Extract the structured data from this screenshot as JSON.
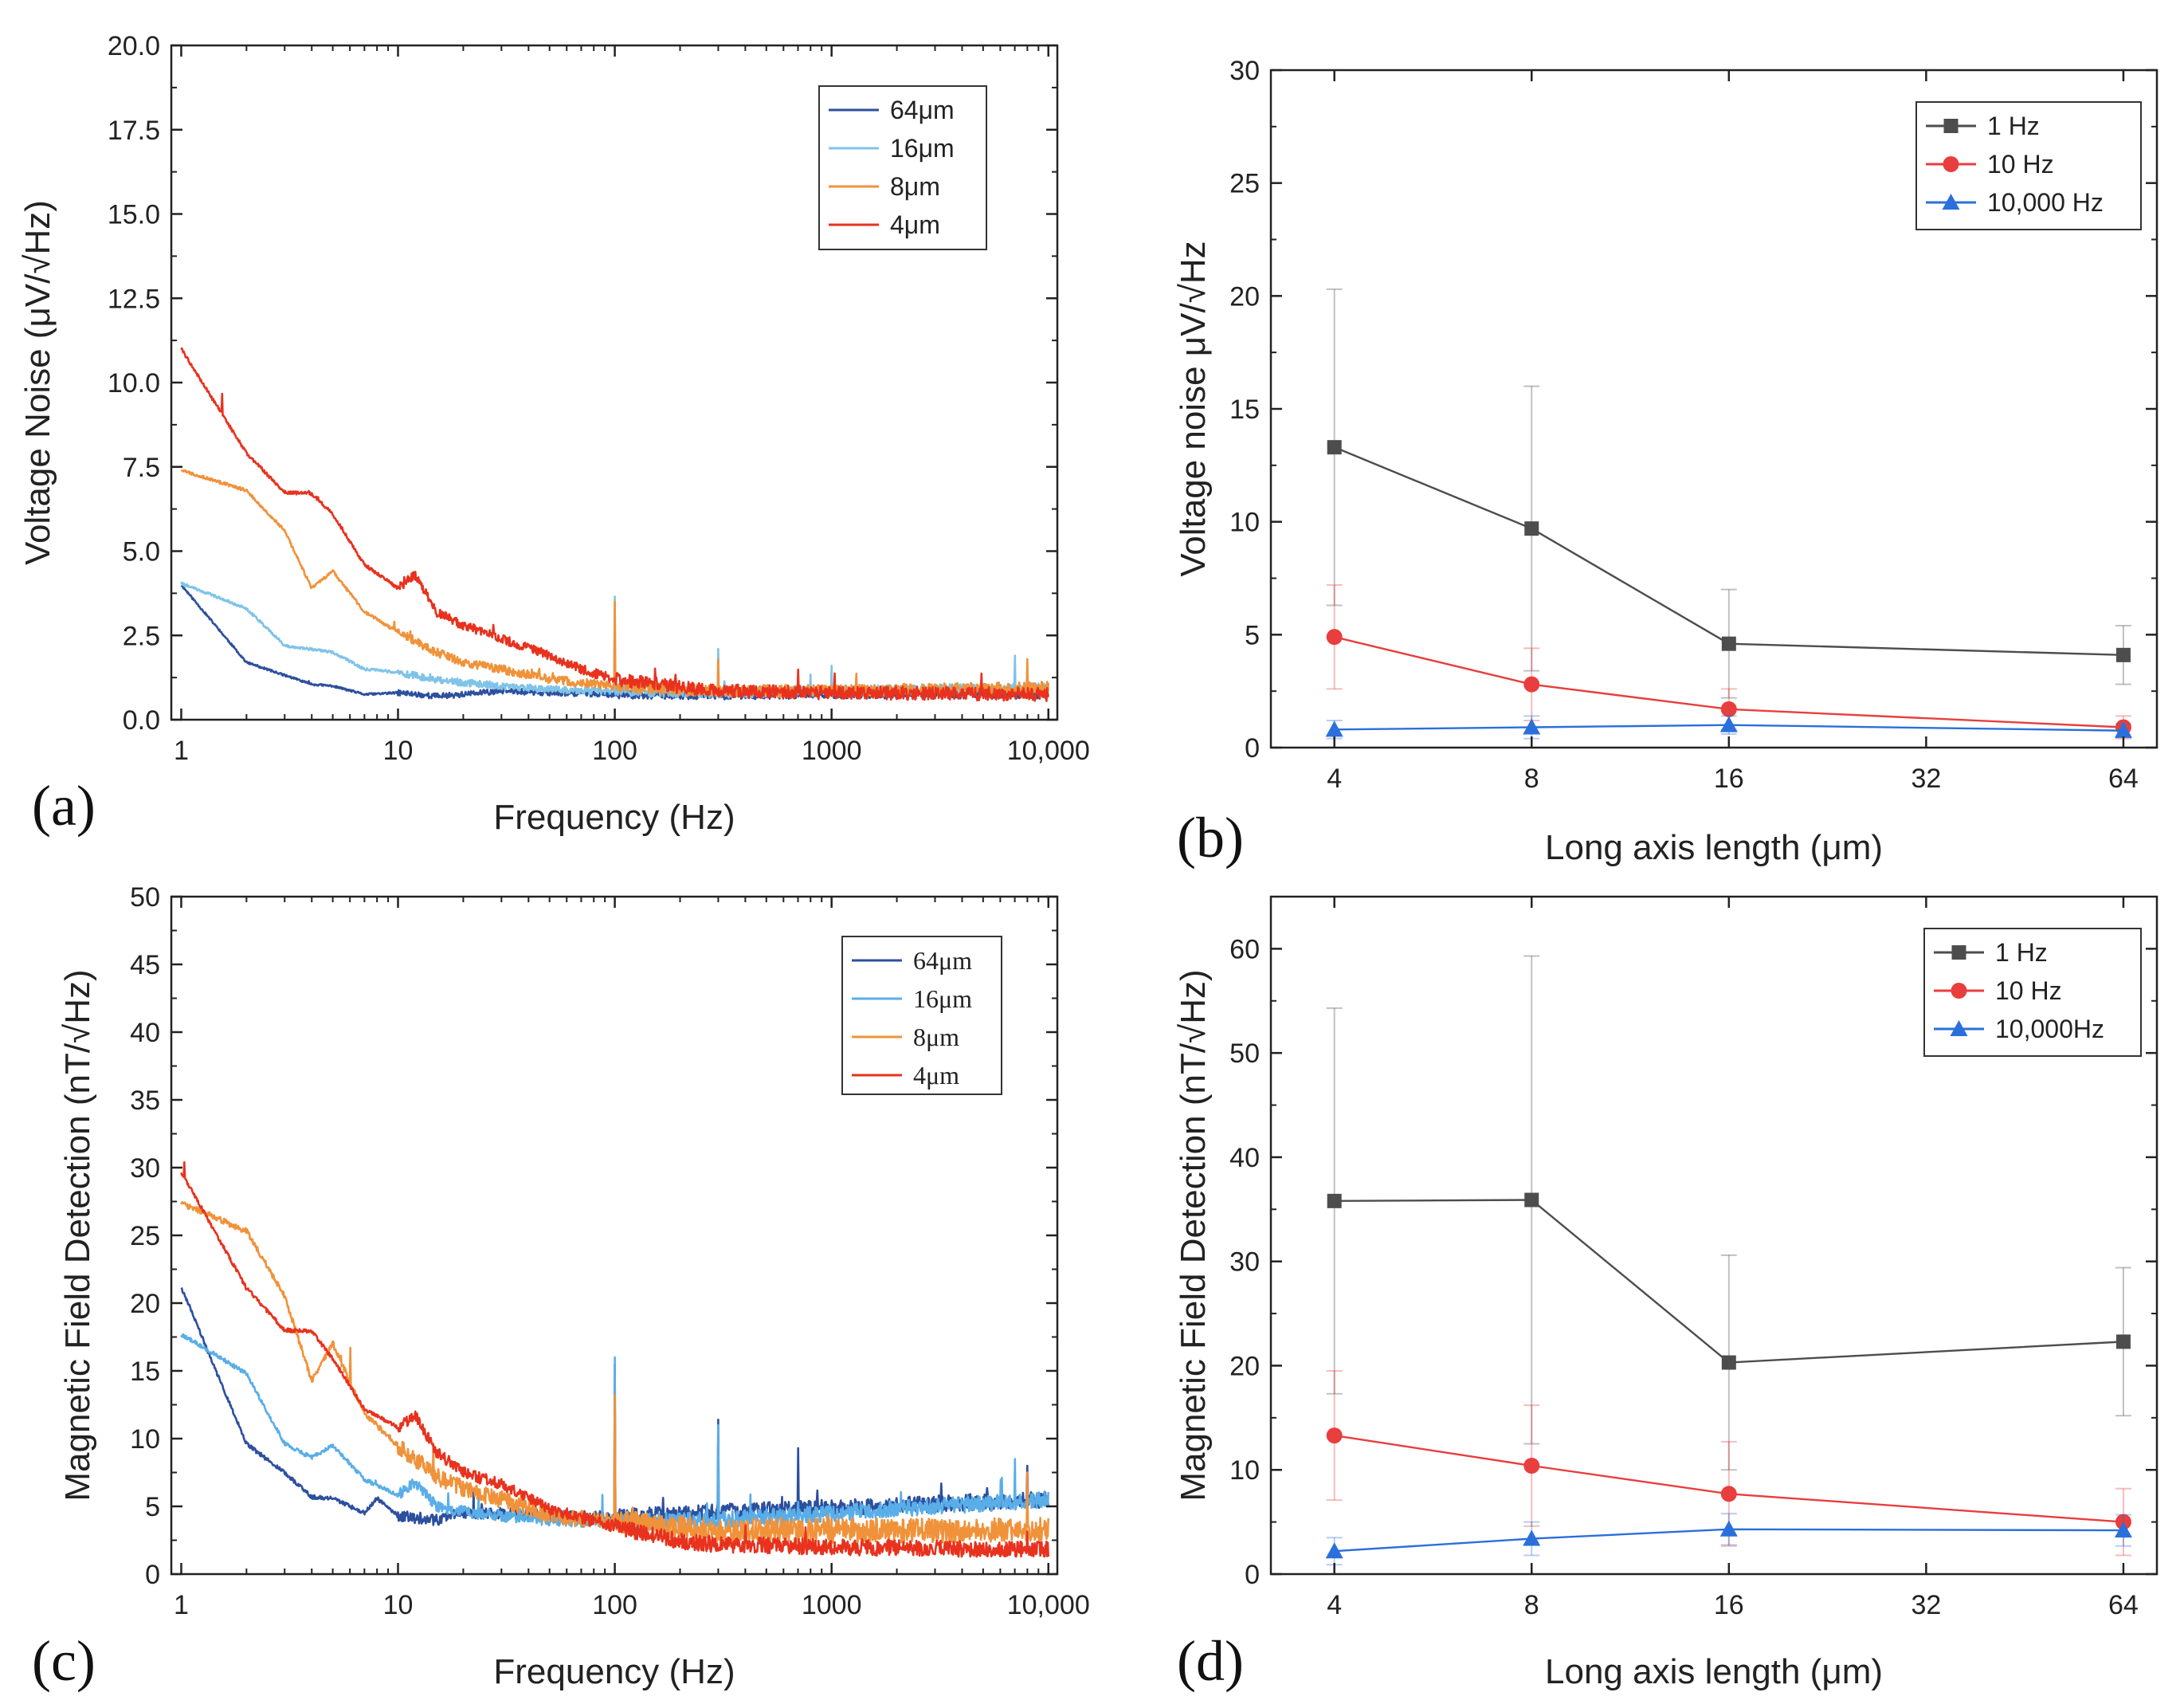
{
  "figure": {
    "description_title": ""
  },
  "chart_data": [
    {
      "type": "line",
      "panel_label": "(a)",
      "title": "",
      "xlabel": "Frequency (Hz)",
      "ylabel": "Voltage Noise (μV/√Hz)",
      "xscale": "log",
      "xlim": [
        0.9,
        11000
      ],
      "ylim": [
        0,
        20
      ],
      "xticks": [
        1,
        10,
        100,
        1000,
        10000
      ],
      "xtick_labels": [
        "1",
        "10",
        "100",
        "1000",
        "10,000"
      ],
      "yticks": [
        0,
        2.5,
        5,
        7.5,
        10,
        12.5,
        15,
        17.5,
        20
      ],
      "ytick_labels": [
        "0.0",
        "2.5",
        "5.0",
        "7.5",
        "10.0",
        "12.5",
        "15.0",
        "17.5",
        "20.0"
      ],
      "legend_position": "top-right",
      "series": [
        {
          "name": "64μm",
          "color": "#2c4f9e",
          "seed": 11,
          "points": [
            [
              1,
              4.0
            ],
            [
              2,
              1.7
            ],
            [
              4,
              1.05
            ],
            [
              5,
              1.0
            ],
            [
              7,
              0.75
            ],
            [
              10,
              0.8
            ],
            [
              15,
              0.7
            ],
            [
              20,
              0.75
            ],
            [
              30,
              0.85
            ],
            [
              50,
              0.8
            ],
            [
              100,
              0.75
            ],
            [
              300,
              0.72
            ],
            [
              1000,
              0.75
            ],
            [
              3000,
              0.75
            ],
            [
              10000,
              0.75
            ]
          ],
          "noise": 0.12,
          "spikes": [
            [
              100,
              1.5
            ],
            [
              300,
              1.4
            ]
          ]
        },
        {
          "name": "16μm",
          "color": "#7fc3e8",
          "seed": 22,
          "points": [
            [
              1,
              4.05
            ],
            [
              2,
              3.3
            ],
            [
              3,
              2.2
            ],
            [
              5,
              2.0
            ],
            [
              7,
              1.5
            ],
            [
              10,
              1.4
            ],
            [
              15,
              1.2
            ],
            [
              20,
              1.1
            ],
            [
              30,
              1.0
            ],
            [
              50,
              0.9
            ],
            [
              100,
              0.85
            ],
            [
              300,
              0.8
            ],
            [
              1000,
              0.85
            ],
            [
              3000,
              0.9
            ],
            [
              10000,
              0.95
            ]
          ],
          "noise": 0.15,
          "spikes": [
            [
              100,
              3.65
            ],
            [
              300,
              2.1
            ],
            [
              1000,
              1.6
            ],
            [
              7000,
              1.9
            ]
          ]
        },
        {
          "name": "8μm",
          "color": "#f0923a",
          "seed": 33,
          "points": [
            [
              1,
              7.4
            ],
            [
              2,
              6.8
            ],
            [
              3,
              5.6
            ],
            [
              4,
              3.9
            ],
            [
              5,
              4.4
            ],
            [
              7,
              3.2
            ],
            [
              10,
              2.6
            ],
            [
              15,
              2.0
            ],
            [
              20,
              1.7
            ],
            [
              30,
              1.5
            ],
            [
              50,
              1.2
            ],
            [
              100,
              1.0
            ],
            [
              300,
              0.85
            ],
            [
              1000,
              0.85
            ],
            [
              3000,
              0.9
            ],
            [
              10000,
              0.95
            ]
          ],
          "noise": 0.18,
          "spikes": [
            [
              100,
              3.5
            ],
            [
              300,
              1.8
            ],
            [
              8000,
              1.8
            ]
          ]
        },
        {
          "name": "4μm",
          "color": "#e8321e",
          "seed": 44,
          "points": [
            [
              1,
              11.0
            ],
            [
              2,
              7.9
            ],
            [
              3,
              6.75
            ],
            [
              4,
              6.7
            ],
            [
              5,
              6.1
            ],
            [
              7,
              4.6
            ],
            [
              10,
              3.9
            ],
            [
              12,
              4.3
            ],
            [
              15,
              3.2
            ],
            [
              20,
              2.8
            ],
            [
              30,
              2.4
            ],
            [
              50,
              1.9
            ],
            [
              70,
              1.5
            ],
            [
              100,
              1.2
            ],
            [
              300,
              0.85
            ],
            [
              1000,
              0.8
            ],
            [
              3000,
              0.78
            ],
            [
              10000,
              0.75
            ]
          ],
          "noise": 0.2,
          "spikes": []
        }
      ]
    },
    {
      "type": "line",
      "panel_label": "(b)",
      "title": "",
      "xlabel": "Long axis length (μm)",
      "ylabel": "Voltage noise μV/√Hz",
      "xscale": "log2",
      "xlim": [
        3.2,
        72
      ],
      "ylim": [
        0,
        30
      ],
      "xticks": [
        4,
        8,
        16,
        32,
        64
      ],
      "xtick_labels": [
        "4",
        "8",
        "16",
        "32",
        "64"
      ],
      "yticks": [
        0,
        5,
        10,
        15,
        20,
        25,
        30
      ],
      "ytick_labels": [
        "0",
        "5",
        "10",
        "15",
        "20",
        "25",
        "30"
      ],
      "legend_position": "top-right",
      "series": [
        {
          "name": "1  Hz",
          "color": "#4d4d4d",
          "marker": "square",
          "x": [
            4,
            8,
            16,
            64
          ],
          "y": [
            13.3,
            9.7,
            4.6,
            4.1
          ],
          "yerr": [
            7.0,
            6.3,
            2.4,
            1.3
          ]
        },
        {
          "name": "10 Hz",
          "color": "#e83e3e",
          "marker": "circle",
          "x": [
            4,
            8,
            16,
            64
          ],
          "y": [
            4.9,
            2.8,
            1.7,
            0.9
          ],
          "yerr": [
            2.3,
            1.6,
            0.9,
            0.5
          ]
        },
        {
          "name": "10,000 Hz",
          "color": "#2a6fdb",
          "marker": "triangle",
          "x": [
            4,
            8,
            16,
            64
          ],
          "y": [
            0.8,
            0.9,
            1.0,
            0.75
          ],
          "yerr": [
            0.4,
            0.5,
            0.4,
            0.3
          ]
        }
      ]
    },
    {
      "type": "line",
      "panel_label": "(c)",
      "title": "",
      "xlabel": "Frequency (Hz)",
      "ylabel": "Magnetic Field Detection (nT/√Hz)",
      "xscale": "log",
      "xlim": [
        0.9,
        11000
      ],
      "ylim": [
        0,
        50
      ],
      "xticks": [
        1,
        10,
        100,
        1000,
        10000
      ],
      "xtick_labels": [
        "1",
        "10",
        "100",
        "1000",
        "10,000"
      ],
      "yticks": [
        0,
        5,
        10,
        15,
        20,
        25,
        30,
        35,
        40,
        45,
        50
      ],
      "ytick_labels": [
        "0",
        "5",
        "10",
        "15",
        "20",
        "25",
        "30",
        "35",
        "40",
        "45",
        "50"
      ],
      "legend_position": "top-right",
      "series": [
        {
          "name": "64μm",
          "color": "#2c4f9e",
          "seed": 55,
          "points": [
            [
              1,
              21.2
            ],
            [
              2,
              9.6
            ],
            [
              3,
              7.5
            ],
            [
              4,
              5.7
            ],
            [
              5,
              5.6
            ],
            [
              7,
              4.5
            ],
            [
              8,
              5.6
            ],
            [
              10,
              4.3
            ],
            [
              15,
              4.0
            ],
            [
              20,
              4.5
            ],
            [
              30,
              4.5
            ],
            [
              50,
              4.3
            ],
            [
              100,
              4.2
            ],
            [
              300,
              4.6
            ],
            [
              1000,
              4.9
            ],
            [
              3000,
              5.2
            ],
            [
              10000,
              5.5
            ]
          ],
          "noise": 0.6,
          "spikes": [
            [
              100,
              15.5
            ],
            [
              300,
              11.4
            ],
            [
              700,
              9.3
            ],
            [
              8000,
              8.0
            ]
          ]
        },
        {
          "name": "16μm",
          "color": "#5aaee8",
          "seed": 66,
          "points": [
            [
              1,
              17.7
            ],
            [
              2,
              14.8
            ],
            [
              3,
              9.6
            ],
            [
              4,
              8.6
            ],
            [
              5,
              9.5
            ],
            [
              7,
              7.0
            ],
            [
              10,
              5.8
            ],
            [
              12,
              6.8
            ],
            [
              15,
              5.0
            ],
            [
              20,
              4.6
            ],
            [
              30,
              4.3
            ],
            [
              50,
              4.0
            ],
            [
              100,
              3.8
            ],
            [
              300,
              4.0
            ],
            [
              1000,
              4.5
            ],
            [
              3000,
              5.0
            ],
            [
              10000,
              5.5
            ]
          ],
          "noise": 0.6,
          "spikes": [
            [
              100,
              16.0
            ],
            [
              300,
              11.0
            ],
            [
              7000,
              8.5
            ]
          ]
        },
        {
          "name": "8μm",
          "color": "#f0923a",
          "seed": 77,
          "points": [
            [
              1,
              27.4
            ],
            [
              2,
              25.3
            ],
            [
              3,
              20.5
            ],
            [
              4,
              14.3
            ],
            [
              5,
              17.0
            ],
            [
              7,
              11.8
            ],
            [
              10,
              9.5
            ],
            [
              15,
              7.2
            ],
            [
              20,
              6.3
            ],
            [
              30,
              5.5
            ],
            [
              50,
              4.4
            ],
            [
              100,
              3.8
            ],
            [
              300,
              3.2
            ],
            [
              1000,
              3.2
            ],
            [
              3000,
              3.2
            ],
            [
              10000,
              3.3
            ]
          ],
          "noise": 0.9,
          "spikes": [
            [
              100,
              13.2
            ],
            [
              8000,
              7.5
            ]
          ]
        },
        {
          "name": "4μm",
          "color": "#e8321e",
          "seed": 88,
          "points": [
            [
              1,
              29.7
            ],
            [
              2,
              21.1
            ],
            [
              3,
              18.0
            ],
            [
              4,
              17.9
            ],
            [
              5,
              15.9
            ],
            [
              7,
              12.2
            ],
            [
              10,
              10.8
            ],
            [
              12,
              11.8
            ],
            [
              15,
              9.0
            ],
            [
              20,
              7.5
            ],
            [
              30,
              6.6
            ],
            [
              50,
              4.8
            ],
            [
              100,
              3.5
            ],
            [
              200,
              2.4
            ],
            [
              300,
              2.2
            ],
            [
              1000,
              2.0
            ],
            [
              3000,
              1.9
            ],
            [
              10000,
              1.85
            ]
          ],
          "noise": 0.6,
          "spikes": []
        }
      ]
    },
    {
      "type": "line",
      "panel_label": "(d)",
      "title": "",
      "xlabel": "Long axis length (μm)",
      "ylabel": "Magnetic Field Detection (nT/√Hz)",
      "xscale": "log2",
      "xlim": [
        3.2,
        72
      ],
      "ylim": [
        0,
        65
      ],
      "xticks": [
        4,
        8,
        16,
        32,
        64
      ],
      "xtick_labels": [
        "4",
        "8",
        "16",
        "32",
        "64"
      ],
      "yticks": [
        0,
        10,
        20,
        30,
        40,
        50,
        60
      ],
      "ytick_labels": [
        "0",
        "10",
        "20",
        "30",
        "40",
        "50",
        "60"
      ],
      "legend_position": "top-right",
      "series": [
        {
          "name": "1  Hz",
          "color": "#4d4d4d",
          "marker": "square",
          "x": [
            4,
            8,
            16,
            64
          ],
          "y": [
            35.8,
            35.9,
            20.3,
            22.3
          ],
          "yerr": [
            18.5,
            23.4,
            10.3,
            7.1
          ]
        },
        {
          "name": "10 Hz",
          "color": "#e83e3e",
          "marker": "circle",
          "x": [
            4,
            8,
            16,
            64
          ],
          "y": [
            13.3,
            10.4,
            7.7,
            5.0
          ],
          "yerr": [
            6.2,
            5.8,
            5.0,
            3.2
          ]
        },
        {
          "name": "10,000Hz",
          "color": "#2a6fdb",
          "marker": "triangle",
          "x": [
            4,
            8,
            16,
            64
          ],
          "y": [
            2.2,
            3.4,
            4.3,
            4.2
          ],
          "yerr": [
            1.3,
            1.6,
            1.5,
            1.5
          ]
        }
      ]
    }
  ]
}
